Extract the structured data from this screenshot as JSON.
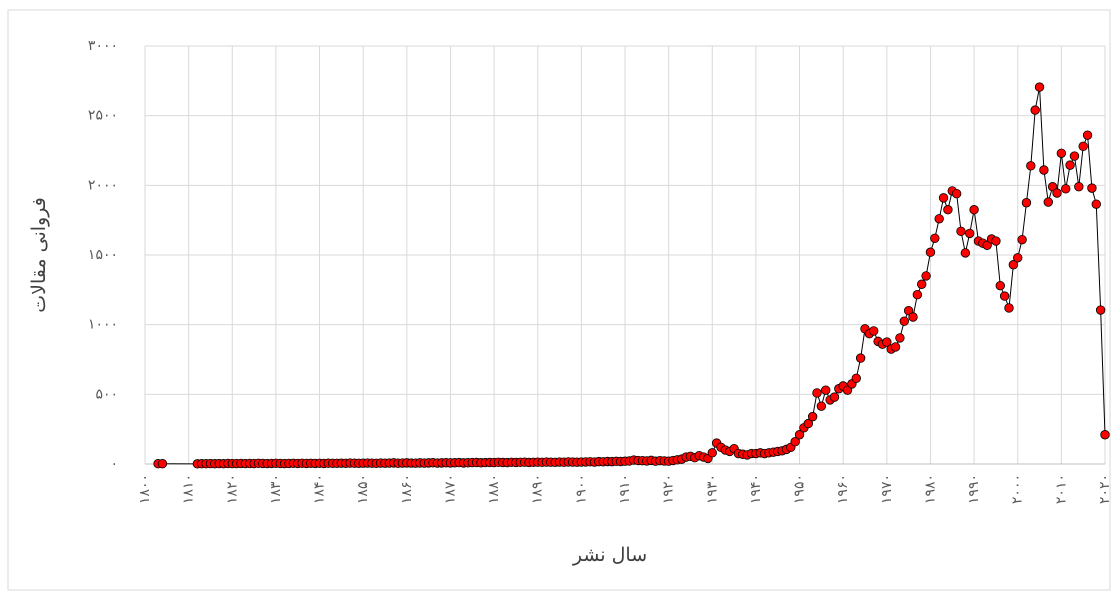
{
  "chart_data": {
    "type": "line",
    "x_label": "سال نشر",
    "y_label": "فروانی مقالات",
    "x": [
      1803,
      1804,
      1812,
      1813,
      1814,
      1815,
      1816,
      1817,
      1818,
      1819,
      1820,
      1821,
      1822,
      1823,
      1824,
      1825,
      1826,
      1827,
      1828,
      1829,
      1830,
      1831,
      1832,
      1833,
      1834,
      1835,
      1836,
      1837,
      1838,
      1839,
      1840,
      1841,
      1842,
      1843,
      1844,
      1845,
      1846,
      1847,
      1848,
      1849,
      1850,
      1851,
      1852,
      1853,
      1854,
      1855,
      1856,
      1857,
      1858,
      1859,
      1860,
      1861,
      1862,
      1863,
      1864,
      1865,
      1866,
      1867,
      1868,
      1869,
      1870,
      1871,
      1872,
      1873,
      1874,
      1875,
      1876,
      1877,
      1878,
      1879,
      1880,
      1881,
      1882,
      1883,
      1884,
      1885,
      1886,
      1887,
      1888,
      1889,
      1890,
      1891,
      1892,
      1893,
      1894,
      1895,
      1896,
      1897,
      1898,
      1899,
      1900,
      1901,
      1902,
      1903,
      1904,
      1905,
      1906,
      1907,
      1908,
      1909,
      1910,
      1911,
      1912,
      1913,
      1914,
      1915,
      1916,
      1917,
      1918,
      1919,
      1920,
      1921,
      1922,
      1923,
      1924,
      1925,
      1926,
      1927,
      1928,
      1929,
      1930,
      1931,
      1932,
      1933,
      1934,
      1935,
      1936,
      1937,
      1938,
      1939,
      1940,
      1941,
      1942,
      1943,
      1944,
      1945,
      1946,
      1947,
      1948,
      1949,
      1950,
      1951,
      1952,
      1953,
      1954,
      1955,
      1956,
      1957,
      1958,
      1959,
      1960,
      1961,
      1962,
      1963,
      1964,
      1965,
      1966,
      1967,
      1968,
      1969,
      1970,
      1971,
      1972,
      1973,
      1974,
      1975,
      1976,
      1977,
      1978,
      1979,
      1980,
      1981,
      1982,
      1983,
      1984,
      1985,
      1986,
      1987,
      1988,
      1989,
      1990,
      1991,
      1992,
      1993,
      1994,
      1995,
      1996,
      1997,
      1998,
      1999,
      2000,
      2001,
      2002,
      2003,
      2004,
      2005,
      2006,
      2007,
      2008,
      2009,
      2010,
      2011,
      2012,
      2013,
      2014,
      2015,
      2016,
      2017,
      2018,
      2019,
      2020
    ],
    "series": [
      {
        "color": "#ff0000",
        "line_color": "#000000",
        "values": [
          2,
          2,
          1,
          2,
          2,
          3,
          2,
          3,
          2,
          4,
          3,
          3,
          4,
          3,
          4,
          3,
          5,
          4,
          3,
          4,
          5,
          4,
          3,
          4,
          5,
          4,
          5,
          4,
          5,
          4,
          5,
          4,
          6,
          5,
          5,
          6,
          5,
          7,
          6,
          5,
          6,
          7,
          6,
          5,
          7,
          6,
          7,
          8,
          6,
          7,
          8,
          7,
          6,
          8,
          7,
          8,
          9,
          7,
          8,
          9,
          8,
          9,
          10,
          8,
          9,
          10,
          11,
          9,
          10,
          11,
          10,
          12,
          11,
          10,
          12,
          11,
          12,
          13,
          11,
          12,
          13,
          12,
          14,
          13,
          12,
          14,
          13,
          15,
          14,
          13,
          14,
          15,
          16,
          14,
          17,
          16,
          18,
          17,
          19,
          18,
          20,
          22,
          28,
          25,
          24,
          22,
          26,
          20,
          24,
          22,
          20,
          25,
          30,
          35,
          50,
          55,
          45,
          60,
          50,
          40,
          80,
          150,
          120,
          100,
          90,
          110,
          75,
          70,
          65,
          75,
          75,
          80,
          75,
          80,
          85,
          90,
          95,
          105,
          120,
          160,
          210,
          260,
          290,
          340,
          510,
          415,
          530,
          460,
          480,
          540,
          560,
          530,
          575,
          615,
          760,
          970,
          935,
          955,
          880,
          860,
          875,
          825,
          840,
          905,
          1025,
          1100,
          1055,
          1215,
          1290,
          1350,
          1520,
          1620,
          1760,
          1910,
          1825,
          1960,
          1940,
          1670,
          1515,
          1655,
          1825,
          1600,
          1585,
          1570,
          1615,
          1600,
          1280,
          1205,
          1120,
          1430,
          1480,
          1610,
          1875,
          2140,
          2540,
          2705,
          2110,
          1880,
          1990,
          1945,
          2230,
          1975,
          2145,
          2210,
          1990,
          2280,
          2360,
          1980,
          1865,
          1105,
          210
        ]
      }
    ],
    "xlim": [
      1800,
      2020
    ],
    "xticks": [
      {
        "value": 1800,
        "label": "۱۸۰۰"
      },
      {
        "value": 1810,
        "label": "۱۸۱۰"
      },
      {
        "value": 1820,
        "label": "۱۸۲۰"
      },
      {
        "value": 1830,
        "label": "۱۸۳۰"
      },
      {
        "value": 1840,
        "label": "۱۸۴۰"
      },
      {
        "value": 1850,
        "label": "۱۸۵۰"
      },
      {
        "value": 1860,
        "label": "۱۸۶۰"
      },
      {
        "value": 1870,
        "label": "۱۸۷۰"
      },
      {
        "value": 1880,
        "label": "۱۸۸۰"
      },
      {
        "value": 1890,
        "label": "۱۸۹۰"
      },
      {
        "value": 1900,
        "label": "۱۹۰۰"
      },
      {
        "value": 1910,
        "label": "۱۹۱۰"
      },
      {
        "value": 1920,
        "label": "۱۹۲۰"
      },
      {
        "value": 1930,
        "label": "۱۹۳۰"
      },
      {
        "value": 1940,
        "label": "۱۹۴۰"
      },
      {
        "value": 1950,
        "label": "۱۹۵۰"
      },
      {
        "value": 1960,
        "label": "۱۹۶۰"
      },
      {
        "value": 1970,
        "label": "۱۹۷۰"
      },
      {
        "value": 1980,
        "label": "۱۹۸۰"
      },
      {
        "value": 1990,
        "label": "۱۹۹۰"
      },
      {
        "value": 2000,
        "label": "۲۰۰۰"
      },
      {
        "value": 2010,
        "label": "۲۰۱۰"
      },
      {
        "value": 2020,
        "label": "۲۰۲۰"
      }
    ],
    "ylim": [
      0,
      3000
    ],
    "yticks": [
      {
        "value": 0,
        "label": "۰"
      },
      {
        "value": 500,
        "label": "۵۰۰"
      },
      {
        "value": 1000,
        "label": "۱۰۰۰"
      },
      {
        "value": 1500,
        "label": "۱۵۰۰"
      },
      {
        "value": 2000,
        "label": "۲۰۰۰"
      },
      {
        "value": 2500,
        "label": "۲۵۰۰"
      },
      {
        "value": 3000,
        "label": "۳۰۰۰"
      }
    ],
    "grid": true
  }
}
